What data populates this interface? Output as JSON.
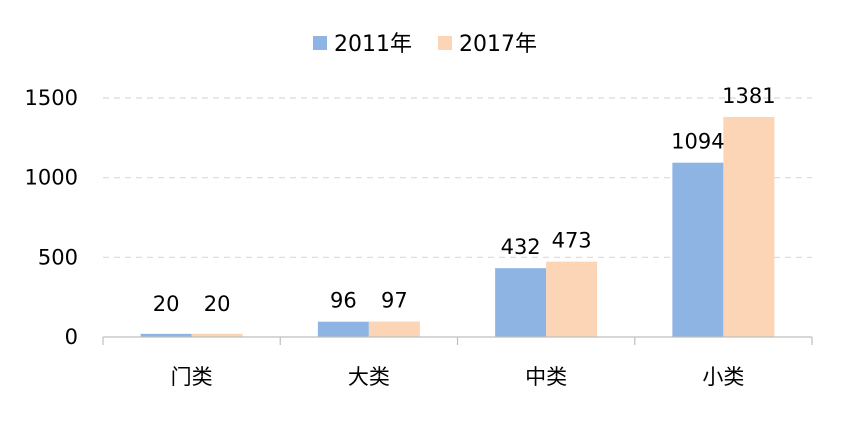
{
  "chart_data": {
    "type": "bar",
    "title": "",
    "xlabel": "",
    "ylabel": "",
    "categories": [
      "门类",
      "大类",
      "中类",
      "小类"
    ],
    "series": [
      {
        "name": "2011年",
        "values": [
          20,
          96,
          432,
          1094
        ],
        "color": "#8EB4E3"
      },
      {
        "name": "2017年",
        "values": [
          20,
          97,
          473,
          1381
        ],
        "color": "#FBD5B5"
      }
    ],
    "ylim": [
      0,
      1500
    ],
    "yticks": [
      0,
      500,
      1000,
      1500
    ],
    "grid": true,
    "grid_style": "dashed",
    "legend_position": "top",
    "data_labels": true
  }
}
